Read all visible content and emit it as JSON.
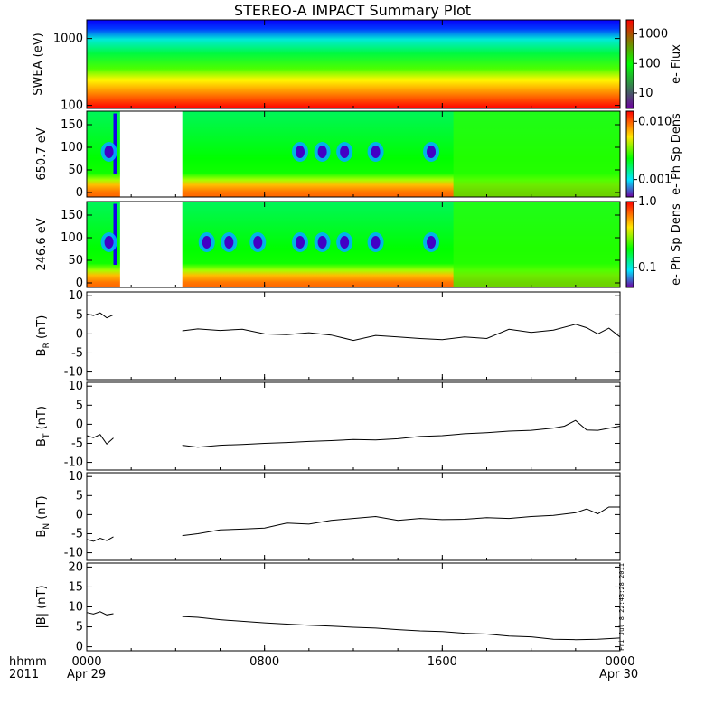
{
  "title": "STEREO-A IMPACT Summary Plot",
  "footer": {
    "axis_label_1": "hhmm",
    "axis_label_2": "2011",
    "date_start": "Apr 29",
    "date_end": "Apr 30",
    "stamp": "Fri Jul  8 22:43:28 2011"
  },
  "colors": {
    "trace": "#000000",
    "background": "#ffffff"
  },
  "chart_data": [
    {
      "type": "heatmap",
      "id": "swea",
      "ylabel": "SWEA (eV)",
      "yscale": "log",
      "ylim": [
        90,
        1900
      ],
      "ytick_labels": [
        "1000",
        "100"
      ],
      "yticks": [
        1000,
        100
      ],
      "colorbar_label": "e- Flux",
      "colorbar_scale": "log",
      "colorbar_range": [
        3,
        3000
      ],
      "colorbar_ticks": [
        1000,
        100,
        10
      ],
      "colorbar_tick_labels": [
        "1000",
        "100",
        "10"
      ],
      "note": "flux decreases with energy; fairly uniform in time"
    },
    {
      "type": "heatmap",
      "id": "pad650",
      "ylabel": "650.7 eV",
      "ylim": [
        -10,
        180
      ],
      "yticks": [
        0,
        50,
        100,
        150
      ],
      "ytick_labels": [
        "0",
        "50",
        "100",
        "150"
      ],
      "colorbar_label": "e- Ph Sp Dens",
      "colorbar_scale": "log",
      "colorbar_range": [
        0.0005,
        0.015
      ],
      "colorbar_ticks": [
        0.01,
        0.001
      ],
      "colorbar_tick_labels": [
        "0.010",
        "0.001"
      ],
      "gap_hours": [
        1.5,
        4.3
      ],
      "blobs_hours": [
        1.0,
        9.6,
        10.6,
        11.6,
        13.0,
        15.5
      ]
    },
    {
      "type": "heatmap",
      "id": "pad246",
      "ylabel": "246.6 eV",
      "ylim": [
        -10,
        180
      ],
      "yticks": [
        0,
        50,
        100,
        150
      ],
      "ytick_labels": [
        "0",
        "50",
        "100",
        "150"
      ],
      "colorbar_label": "e- Ph Sp Dens",
      "colorbar_scale": "log",
      "colorbar_range": [
        0.05,
        1.0
      ],
      "colorbar_ticks": [
        1.0,
        0.1
      ],
      "colorbar_tick_labels": [
        "1.0",
        "0.1"
      ],
      "gap_hours": [
        1.5,
        4.3
      ],
      "blobs_hours": [
        1.0,
        5.4,
        6.4,
        7.7,
        9.6,
        10.6,
        11.6,
        13.0,
        15.5
      ]
    },
    {
      "type": "line",
      "id": "br",
      "ylabel_main": "B",
      "ylabel_sub": "R",
      "ylabel_unit": " (nT)",
      "ylim": [
        -12,
        11
      ],
      "yticks": [
        10,
        5,
        0,
        -5,
        -10
      ],
      "ytick_labels": [
        "10",
        "5",
        "0",
        "-5",
        "-10"
      ],
      "segments": [
        {
          "x": [
            0.0,
            0.3,
            0.6,
            0.9,
            1.2
          ],
          "y": [
            5.2,
            4.8,
            5.5,
            4.2,
            5.0
          ]
        },
        {
          "x": [
            4.3,
            5.0,
            6.0,
            7.0,
            8.0,
            9.0,
            10.0,
            11.0,
            12.0,
            13.0,
            14.0,
            15.0,
            16.0,
            17.0,
            18.0,
            19.0,
            20.0,
            21.0,
            22.0,
            22.5,
            23.0,
            23.5,
            24.0
          ],
          "y": [
            0.8,
            1.3,
            0.9,
            1.2,
            0.0,
            -0.2,
            0.3,
            -0.3,
            -1.7,
            -0.4,
            -0.8,
            -1.2,
            -1.5,
            -0.8,
            -1.2,
            1.2,
            0.4,
            1.0,
            2.5,
            1.6,
            0.0,
            1.5,
            -0.8
          ]
        }
      ]
    },
    {
      "type": "line",
      "id": "bt",
      "ylabel_main": "B",
      "ylabel_sub": "T",
      "ylabel_unit": " (nT)",
      "ylim": [
        -12,
        11
      ],
      "yticks": [
        10,
        5,
        0,
        -5,
        -10
      ],
      "ytick_labels": [
        "10",
        "5",
        "0",
        "-5",
        "-10"
      ],
      "segments": [
        {
          "x": [
            0.0,
            0.3,
            0.6,
            0.9,
            1.2
          ],
          "y": [
            -3.0,
            -3.5,
            -2.7,
            -5.2,
            -3.6
          ]
        },
        {
          "x": [
            4.3,
            5.0,
            6.0,
            7.0,
            8.0,
            9.0,
            10.0,
            11.0,
            12.0,
            13.0,
            14.0,
            15.0,
            16.0,
            17.0,
            18.0,
            19.0,
            20.0,
            21.0,
            21.5,
            22.0,
            22.5,
            23.0,
            24.0
          ],
          "y": [
            -5.5,
            -6.0,
            -5.5,
            -5.3,
            -5.0,
            -4.8,
            -4.5,
            -4.3,
            -4.0,
            -4.1,
            -3.8,
            -3.2,
            -3.0,
            -2.5,
            -2.2,
            -1.8,
            -1.6,
            -1.0,
            -0.5,
            1.0,
            -1.5,
            -1.6,
            -0.5
          ]
        }
      ]
    },
    {
      "type": "line",
      "id": "bn",
      "ylabel_main": "B",
      "ylabel_sub": "N",
      "ylabel_unit": " (nT)",
      "ylim": [
        -12,
        11
      ],
      "yticks": [
        10,
        5,
        0,
        -5,
        -10
      ],
      "ytick_labels": [
        "10",
        "5",
        "0",
        "-5",
        "-10"
      ],
      "segments": [
        {
          "x": [
            0.0,
            0.3,
            0.6,
            0.9,
            1.2
          ],
          "y": [
            -6.5,
            -7.0,
            -6.2,
            -6.8,
            -5.8
          ]
        },
        {
          "x": [
            4.3,
            5.0,
            6.0,
            7.0,
            8.0,
            9.0,
            10.0,
            11.0,
            12.0,
            13.0,
            14.0,
            15.0,
            16.0,
            17.0,
            18.0,
            19.0,
            20.0,
            21.0,
            22.0,
            22.5,
            23.0,
            23.5,
            24.0
          ],
          "y": [
            -5.5,
            -5.0,
            -4.0,
            -3.8,
            -3.5,
            -2.2,
            -2.5,
            -1.5,
            -1.0,
            -0.5,
            -1.5,
            -1.0,
            -1.3,
            -1.2,
            -0.8,
            -1.0,
            -0.5,
            -0.2,
            0.5,
            1.5,
            0.2,
            2.0,
            2.0
          ]
        }
      ]
    },
    {
      "type": "line",
      "id": "bmag",
      "ylabel_main": "|B| (nT)",
      "ylim": [
        -1,
        21
      ],
      "yticks": [
        20,
        15,
        10,
        5,
        0
      ],
      "ytick_labels": [
        "20",
        "15",
        "10",
        "5",
        "0"
      ],
      "segments": [
        {
          "x": [
            0.0,
            0.3,
            0.6,
            0.9,
            1.2
          ],
          "y": [
            8.6,
            8.2,
            8.8,
            8.0,
            8.3
          ]
        },
        {
          "x": [
            4.3,
            5.0,
            6.0,
            7.0,
            8.0,
            9.0,
            10.0,
            11.0,
            12.0,
            13.0,
            14.0,
            15.0,
            16.0,
            17.0,
            18.0,
            19.0,
            20.0,
            21.0,
            22.0,
            23.0,
            24.0
          ],
          "y": [
            7.6,
            7.4,
            6.8,
            6.4,
            6.0,
            5.7,
            5.4,
            5.2,
            4.9,
            4.7,
            4.3,
            4.0,
            3.8,
            3.4,
            3.2,
            2.7,
            2.5,
            1.9,
            1.8,
            1.9,
            2.2
          ]
        }
      ]
    }
  ],
  "x_axis": {
    "range_hours": [
      0,
      24
    ],
    "ticks_hours": [
      0,
      8,
      16,
      24
    ],
    "tick_labels": [
      "0000",
      "0800",
      "1600",
      "0000"
    ]
  }
}
